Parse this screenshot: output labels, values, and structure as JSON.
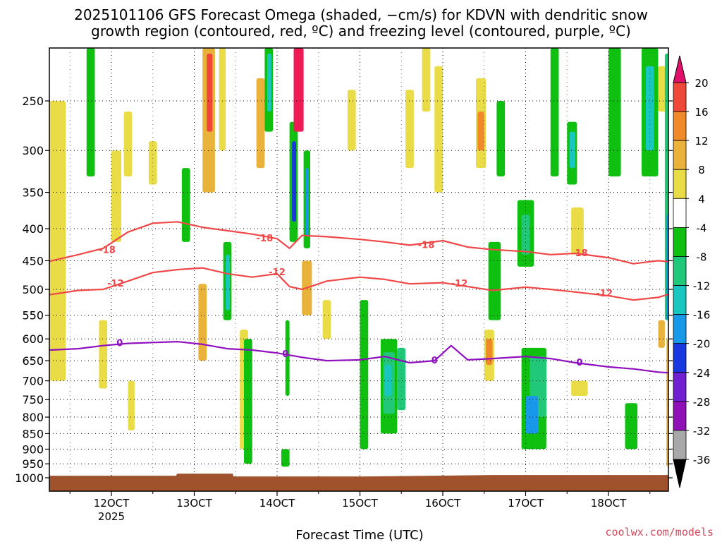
{
  "chart_data": {
    "type": "heatmap",
    "title_line1": "2025101106 GFS Forecast Omega (shaded, −cm/s) for KDVN with dendritic snow",
    "title_line2": "growth region (contoured, red, ºC) and freezing level (contoured, purple, ºC)",
    "xlabel": "Forecast Time (UTC)",
    "x_ticks": [
      "12OCT",
      "13OCT",
      "14OCT",
      "15OCT",
      "16OCT",
      "17OCT",
      "18OCT"
    ],
    "x_tick_values": [
      12,
      13,
      14,
      15,
      16,
      17,
      18
    ],
    "x_year_label": "2025",
    "xlim": [
      11.25,
      18.75
    ],
    "y_ticks": [
      250,
      300,
      350,
      400,
      450,
      500,
      550,
      600,
      650,
      700,
      750,
      800,
      850,
      900,
      950,
      1000
    ],
    "ylim_hpa": [
      200,
      1020
    ],
    "ylabel": "",
    "colorbar": {
      "boundaries": [
        20,
        16,
        12,
        8,
        4,
        -4,
        -8,
        -12,
        -16,
        -20,
        -24,
        -28,
        -32,
        -36
      ],
      "labels": [
        "20",
        "16",
        "12",
        "8",
        "4",
        "-4",
        "-8",
        "-12",
        "-16",
        "-20",
        "-24",
        "-28",
        "-32",
        "-36"
      ],
      "colors": [
        "#ee1b55",
        "#f04838",
        "#f08a28",
        "#e9b23a",
        "#e9dc47",
        "#ffffff",
        "#10c010",
        "#20c878",
        "#18c8c0",
        "#1898e8",
        "#1838e0",
        "#7020d0",
        "#9010b8",
        "#a8a8a8"
      ],
      "top_arrow_color": "#e0106a",
      "bottom_arrow_color": "#000000"
    },
    "series": [
      {
        "name": "-18",
        "color": "#f04848",
        "x": [
          11.25,
          11.6,
          11.9,
          12.2,
          12.5,
          12.8,
          13.1,
          13.4,
          13.7,
          14.0,
          14.15,
          14.3,
          14.6,
          15.0,
          15.3,
          15.6,
          16.0,
          16.3,
          16.6,
          17.0,
          17.3,
          17.6,
          18.0,
          18.3,
          18.6,
          18.75
        ],
        "y": [
          451,
          440,
          430,
          405,
          392,
          390,
          398,
          403,
          408,
          415,
          430,
          410,
          412,
          416,
          420,
          425,
          418,
          428,
          432,
          435,
          440,
          438,
          445,
          455,
          450,
          452
        ]
      },
      {
        "name": "-12",
        "color": "#f04848",
        "x": [
          11.25,
          11.6,
          11.9,
          12.2,
          12.5,
          12.8,
          13.1,
          13.4,
          13.7,
          14.0,
          14.15,
          14.3,
          14.6,
          15.0,
          15.3,
          15.6,
          16.0,
          16.3,
          16.6,
          17.0,
          17.3,
          17.6,
          18.0,
          18.3,
          18.6,
          18.75
        ],
        "y": [
          510,
          502,
          500,
          485,
          470,
          465,
          462,
          472,
          478,
          472,
          495,
          500,
          485,
          478,
          482,
          490,
          488,
          495,
          502,
          496,
          500,
          505,
          512,
          520,
          515,
          508
        ]
      },
      {
        "name": "0",
        "color": "#9010c0",
        "x": [
          11.25,
          11.6,
          11.9,
          12.2,
          12.5,
          12.8,
          13.1,
          13.4,
          13.7,
          14.0,
          14.3,
          14.6,
          15.0,
          15.3,
          15.6,
          15.9,
          16.1,
          16.3,
          16.6,
          17.0,
          17.3,
          17.6,
          18.0,
          18.3,
          18.6,
          18.75
        ],
        "y": [
          625,
          622,
          615,
          610,
          608,
          606,
          612,
          622,
          625,
          632,
          642,
          650,
          648,
          640,
          655,
          650,
          615,
          648,
          645,
          640,
          645,
          655,
          665,
          670,
          678,
          680
        ]
      }
    ],
    "contour_labels": [
      {
        "text": "-18",
        "x": 11.95,
        "y": 433
      },
      {
        "text": "-18",
        "x": 13.85,
        "y": 415
      },
      {
        "text": "-18",
        "x": 15.8,
        "y": 425
      },
      {
        "text": "-18",
        "x": 17.65,
        "y": 438
      },
      {
        "text": "-12",
        "x": 12.05,
        "y": 490
      },
      {
        "text": "-12",
        "x": 14.0,
        "y": 470
      },
      {
        "text": "-12",
        "x": 16.2,
        "y": 490
      },
      {
        "text": "-12",
        "x": 17.95,
        "y": 508
      },
      {
        "text": "0",
        "x": 12.1,
        "y": 610
      },
      {
        "text": "0",
        "x": 14.1,
        "y": 635
      },
      {
        "text": "0",
        "x": 15.9,
        "y": 650
      },
      {
        "text": "0",
        "x": 17.65,
        "y": 655
      }
    ],
    "shaded_regions": [
      {
        "x0": 11.25,
        "x1": 11.45,
        "p0": 250,
        "p1": 700,
        "c": "#e9dc47"
      },
      {
        "x0": 11.7,
        "x1": 11.8,
        "p0": 200,
        "p1": 330,
        "c": "#10c010"
      },
      {
        "x0": 11.85,
        "x1": 11.95,
        "p0": 560,
        "p1": 720,
        "c": "#e9dc47"
      },
      {
        "x0": 12.0,
        "x1": 12.12,
        "p0": 300,
        "p1": 420,
        "c": "#e9dc47"
      },
      {
        "x0": 12.15,
        "x1": 12.25,
        "p0": 260,
        "p1": 330,
        "c": "#e9dc47"
      },
      {
        "x0": 12.2,
        "x1": 12.28,
        "p0": 700,
        "p1": 840,
        "c": "#e9dc47"
      },
      {
        "x0": 12.45,
        "x1": 12.55,
        "p0": 290,
        "p1": 340,
        "c": "#e9dc47"
      },
      {
        "x0": 12.85,
        "x1": 12.95,
        "p0": 320,
        "p1": 420,
        "c": "#10c010"
      },
      {
        "x0": 13.1,
        "x1": 13.25,
        "p0": 200,
        "p1": 350,
        "c": "#e9b23a"
      },
      {
        "x0": 13.15,
        "x1": 13.22,
        "p0": 210,
        "p1": 280,
        "c": "#f04838"
      },
      {
        "x0": 13.05,
        "x1": 13.15,
        "p0": 490,
        "p1": 650,
        "c": "#e9b23a"
      },
      {
        "x0": 13.3,
        "x1": 13.38,
        "p0": 200,
        "p1": 300,
        "c": "#e9dc47"
      },
      {
        "x0": 13.35,
        "x1": 13.45,
        "p0": 420,
        "p1": 560,
        "c": "#10c010"
      },
      {
        "x0": 13.38,
        "x1": 13.43,
        "p0": 440,
        "p1": 540,
        "c": "#18c8c0"
      },
      {
        "x0": 13.55,
        "x1": 13.65,
        "p0": 580,
        "p1": 900,
        "c": "#e9dc47"
      },
      {
        "x0": 13.6,
        "x1": 13.7,
        "p0": 600,
        "p1": 950,
        "c": "#10c010"
      },
      {
        "x0": 13.75,
        "x1": 13.85,
        "p0": 230,
        "p1": 320,
        "c": "#e9b23a"
      },
      {
        "x0": 13.85,
        "x1": 13.95,
        "p0": 200,
        "p1": 280,
        "c": "#10c010"
      },
      {
        "x0": 13.88,
        "x1": 13.93,
        "p0": 210,
        "p1": 260,
        "c": "#18c8c0"
      },
      {
        "x0": 14.1,
        "x1": 14.15,
        "p0": 560,
        "p1": 740,
        "c": "#10c010"
      },
      {
        "x0": 14.15,
        "x1": 14.25,
        "p0": 270,
        "p1": 420,
        "c": "#10c010"
      },
      {
        "x0": 14.18,
        "x1": 14.23,
        "p0": 290,
        "p1": 390,
        "c": "#1838e0"
      },
      {
        "x0": 14.2,
        "x1": 14.32,
        "p0": 200,
        "p1": 280,
        "c": "#ee1b55"
      },
      {
        "x0": 14.32,
        "x1": 14.4,
        "p0": 300,
        "p1": 430,
        "c": "#10c010"
      },
      {
        "x0": 14.34,
        "x1": 14.38,
        "p0": 320,
        "p1": 410,
        "c": "#1898e8"
      },
      {
        "x0": 14.3,
        "x1": 14.42,
        "p0": 450,
        "p1": 550,
        "c": "#e9b23a"
      },
      {
        "x0": 14.05,
        "x1": 14.15,
        "p0": 900,
        "p1": 960,
        "c": "#10c010"
      },
      {
        "x0": 14.55,
        "x1": 14.65,
        "p0": 520,
        "p1": 600,
        "c": "#e9dc47"
      },
      {
        "x0": 14.85,
        "x1": 14.95,
        "p0": 240,
        "p1": 300,
        "c": "#e9dc47"
      },
      {
        "x0": 15.0,
        "x1": 15.1,
        "p0": 520,
        "p1": 900,
        "c": "#10c010"
      },
      {
        "x0": 15.25,
        "x1": 15.45,
        "p0": 600,
        "p1": 850,
        "c": "#10c010"
      },
      {
        "x0": 15.28,
        "x1": 15.42,
        "p0": 630,
        "p1": 790,
        "c": "#20c878"
      },
      {
        "x0": 15.45,
        "x1": 15.55,
        "p0": 620,
        "p1": 780,
        "c": "#20c878"
      },
      {
        "x0": 15.3,
        "x1": 15.38,
        "p0": 660,
        "p1": 740,
        "c": "#18c8c0"
      },
      {
        "x0": 15.55,
        "x1": 15.65,
        "p0": 240,
        "p1": 320,
        "c": "#e9dc47"
      },
      {
        "x0": 15.75,
        "x1": 15.85,
        "p0": 200,
        "p1": 260,
        "c": "#e9dc47"
      },
      {
        "x0": 15.9,
        "x1": 16.0,
        "p0": 220,
        "p1": 350,
        "c": "#e9dc47"
      },
      {
        "x0": 16.4,
        "x1": 16.52,
        "p0": 230,
        "p1": 320,
        "c": "#e9dc47"
      },
      {
        "x0": 16.42,
        "x1": 16.5,
        "p0": 260,
        "p1": 300,
        "c": "#f08a28"
      },
      {
        "x0": 16.5,
        "x1": 16.62,
        "p0": 580,
        "p1": 700,
        "c": "#e9dc47"
      },
      {
        "x0": 16.52,
        "x1": 16.6,
        "p0": 600,
        "p1": 660,
        "c": "#f08a28"
      },
      {
        "x0": 16.55,
        "x1": 16.7,
        "p0": 420,
        "p1": 560,
        "c": "#10c010"
      },
      {
        "x0": 16.65,
        "x1": 16.75,
        "p0": 250,
        "p1": 330,
        "c": "#10c010"
      },
      {
        "x0": 16.9,
        "x1": 17.1,
        "p0": 360,
        "p1": 460,
        "c": "#10c010"
      },
      {
        "x0": 16.95,
        "x1": 17.05,
        "p0": 380,
        "p1": 440,
        "c": "#20c878"
      },
      {
        "x0": 16.95,
        "x1": 17.25,
        "p0": 620,
        "p1": 900,
        "c": "#10c010"
      },
      {
        "x0": 17.05,
        "x1": 17.25,
        "p0": 640,
        "p1": 800,
        "c": "#20c878"
      },
      {
        "x0": 17.0,
        "x1": 17.15,
        "p0": 740,
        "p1": 850,
        "c": "#1898e8"
      },
      {
        "x0": 17.3,
        "x1": 17.4,
        "p0": 200,
        "p1": 330,
        "c": "#10c010"
      },
      {
        "x0": 17.5,
        "x1": 17.62,
        "p0": 270,
        "p1": 340,
        "c": "#10c010"
      },
      {
        "x0": 17.53,
        "x1": 17.6,
        "p0": 280,
        "p1": 320,
        "c": "#18c8c0"
      },
      {
        "x0": 17.55,
        "x1": 17.7,
        "p0": 370,
        "p1": 440,
        "c": "#e9dc47"
      },
      {
        "x0": 17.55,
        "x1": 17.75,
        "p0": 700,
        "p1": 740,
        "c": "#e9dc47"
      },
      {
        "x0": 18.0,
        "x1": 18.15,
        "p0": 200,
        "p1": 330,
        "c": "#10c010"
      },
      {
        "x0": 18.2,
        "x1": 18.35,
        "p0": 760,
        "p1": 900,
        "c": "#10c010"
      },
      {
        "x0": 18.4,
        "x1": 18.6,
        "p0": 200,
        "p1": 330,
        "c": "#10c010"
      },
      {
        "x0": 18.45,
        "x1": 18.55,
        "p0": 220,
        "p1": 300,
        "c": "#18c8c0"
      },
      {
        "x0": 18.6,
        "x1": 18.7,
        "p0": 220,
        "p1": 260,
        "c": "#e9dc47"
      },
      {
        "x0": 18.6,
        "x1": 18.68,
        "p0": 560,
        "p1": 620,
        "c": "#e9b23a"
      },
      {
        "x0": 18.68,
        "x1": 18.75,
        "p0": 210,
        "p1": 560,
        "c": "#20c878"
      },
      {
        "x0": 18.7,
        "x1": 18.75,
        "p0": 380,
        "p1": 560,
        "c": "#1898e8"
      },
      {
        "x0": 18.7,
        "x1": 18.75,
        "p0": 600,
        "p1": 960,
        "c": "#e9b23a"
      }
    ],
    "surface_color": "#a0522d",
    "surface_pressure": 1003,
    "grid": "dotted"
  },
  "credit": "coolwx.com/models"
}
